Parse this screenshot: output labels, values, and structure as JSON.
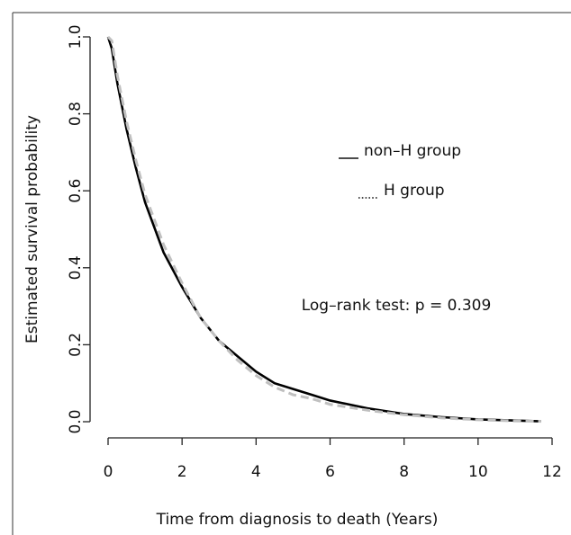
{
  "chart_data": {
    "type": "line",
    "x_label": "Time from diagnosis to death (Years)",
    "y_label": "Estimated survival probability",
    "annotation": "Log–rank test: p = 0.309",
    "x": [
      0,
      0.1,
      0.25,
      0.5,
      0.75,
      1,
      1.5,
      2,
      2.5,
      3,
      3.5,
      4,
      4.5,
      5,
      5.5,
      6,
      7,
      8,
      9,
      10,
      11,
      11.7
    ],
    "series": [
      {
        "name": "non–H group",
        "color": "#000000",
        "style": "solid",
        "values": [
          1.0,
          0.97,
          0.88,
          0.76,
          0.66,
          0.57,
          0.44,
          0.35,
          0.27,
          0.21,
          0.17,
          0.13,
          0.1,
          0.085,
          0.07,
          0.055,
          0.035,
          0.02,
          0.012,
          0.006,
          0.003,
          0.001
        ]
      },
      {
        "name": "H group",
        "color": "#c0c0c0",
        "style": "dashed",
        "values": [
          1.0,
          0.99,
          0.9,
          0.78,
          0.68,
          0.59,
          0.46,
          0.36,
          0.27,
          0.21,
          0.16,
          0.12,
          0.09,
          0.07,
          0.06,
          0.045,
          0.03,
          0.018,
          0.01,
          0.005,
          0.002,
          0.001
        ]
      }
    ],
    "xlim": [
      0,
      12
    ],
    "xticks": [
      0,
      2,
      4,
      6,
      8,
      10,
      12
    ],
    "ylim": [
      0,
      1
    ],
    "yticks": [
      {
        "value": 0,
        "label": "0.0"
      },
      0.2,
      0.4,
      0.6,
      0.8,
      {
        "value": 1,
        "label": "1.0"
      }
    ],
    "grid": false
  }
}
